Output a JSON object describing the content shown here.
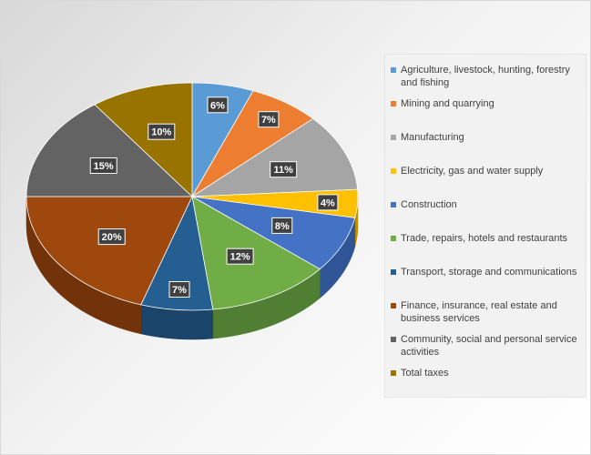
{
  "chart_data": {
    "type": "pie",
    "title": "",
    "legend_position": "right",
    "categories": [
      "Agriculture, livestock, hunting, forestry and fishing",
      "Mining and quarrying",
      "Manufacturing",
      "Electricity, gas and water supply",
      "Construction",
      "Trade, repairs, hotels and restaurants",
      "Transport, storage and communications",
      "Finance, insurance, real estate and business services",
      "Community, social and personal service activities",
      "Total taxes"
    ],
    "values": [
      6,
      7,
      11,
      4,
      8,
      12,
      7,
      20,
      15,
      10
    ],
    "data_labels": [
      "6%",
      "7%",
      "11%",
      "4%",
      "8%",
      "12%",
      "7%",
      "20%",
      "15%",
      "10%"
    ],
    "colors": [
      "#5b9bd5",
      "#ed7d31",
      "#a5a5a5",
      "#ffc000",
      "#4472c4",
      "#70ad47",
      "#255e91",
      "#9e480e",
      "#636363",
      "#997300"
    ],
    "side_colors": [
      "#41719c",
      "#ad5a24",
      "#7a7a7a",
      "#bd8e00",
      "#2f5597",
      "#507e32",
      "#1a4469",
      "#72330a",
      "#454545",
      "#6f5300"
    ]
  }
}
